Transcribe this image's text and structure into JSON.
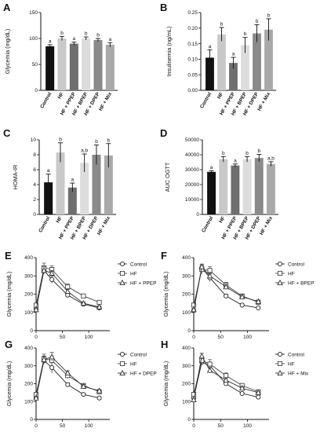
{
  "colors": {
    "control": "#111111",
    "hf": "#c9c9c9",
    "hf_ppep": "#6e6e6e",
    "hf_bpep": "#dcdcdc",
    "hf_dpep": "#8a8a8a",
    "hf_mix": "#a9a9a9",
    "axis": "#111111"
  },
  "chart_data": [
    {
      "panel": "A",
      "type": "bar",
      "ylabel": "Glycemia (mg/dL)",
      "ylim": [
        0,
        150
      ],
      "yticks": [
        "0",
        "50",
        "100",
        "150"
      ],
      "categories": [
        "Control",
        "HF",
        "HF + PPEP",
        "HF + BPEP",
        "HF + DPEP",
        "HF + Mix"
      ],
      "values": [
        85,
        100,
        90,
        100,
        97,
        88
      ],
      "errors": [
        3,
        4,
        3,
        3,
        3,
        4
      ],
      "labels": [
        "a",
        "b",
        "a",
        "b",
        "b",
        "a"
      ]
    },
    {
      "panel": "B",
      "type": "bar",
      "ylabel": "Insulinemia (ng/mL)",
      "ylim": [
        0,
        0.25
      ],
      "yticks": [
        "0.00",
        "0.05",
        "0.10",
        "0.15",
        "0.20",
        "0.25"
      ],
      "categories": [
        "Control",
        "HF",
        "HF + PPEP",
        "HF + BPEP",
        "HF + DPEP",
        "HF + Mix"
      ],
      "values": [
        0.105,
        0.18,
        0.088,
        0.145,
        0.183,
        0.195
      ],
      "errors": [
        0.025,
        0.022,
        0.018,
        0.025,
        0.028,
        0.035
      ],
      "labels": [
        "a",
        "b",
        "a",
        "b",
        "b",
        "b"
      ]
    },
    {
      "panel": "C",
      "type": "bar",
      "ylabel": "HOMA-IR",
      "ylim": [
        0,
        10
      ],
      "yticks": [
        "0",
        "2",
        "4",
        "6",
        "8",
        "10"
      ],
      "categories": [
        "Control",
        "HF",
        "HF + PPEP",
        "HF + BPEP",
        "HF + DPEP",
        "HF + Mix"
      ],
      "values": [
        4.3,
        8.3,
        3.6,
        6.9,
        8.0,
        7.9
      ],
      "errors": [
        1.1,
        1.3,
        0.6,
        1.2,
        1.3,
        1.6
      ],
      "labels": [
        "a",
        "b",
        "a",
        "a,b",
        "b",
        "b"
      ]
    },
    {
      "panel": "D",
      "type": "bar",
      "ylabel": "AUC OGTT",
      "ylim": [
        0,
        50000
      ],
      "yticks": [
        "0",
        "10000",
        "20000",
        "30000",
        "40000",
        "50000"
      ],
      "categories": [
        "Control",
        "HF",
        "HF + PPEP",
        "HF + BPEP",
        "HF + DPEP",
        "HF + Mix"
      ],
      "values": [
        28500,
        37000,
        32800,
        37000,
        37800,
        33800
      ],
      "errors": [
        800,
        1800,
        1000,
        1800,
        2400,
        1500
      ],
      "labels": [
        "a",
        "b",
        "a",
        "b",
        "b",
        "a,b"
      ]
    },
    {
      "panel": "E",
      "type": "line",
      "ylabel": "Glycemia (mg/dL)",
      "ylim": [
        0,
        400
      ],
      "xlim": [
        0,
        140
      ],
      "yticks": [
        "0",
        "100",
        "200",
        "300",
        "400"
      ],
      "xticks": [
        "0",
        "50",
        "100"
      ],
      "x": [
        0,
        15,
        30,
        60,
        90,
        120
      ],
      "series": [
        {
          "name": "Control",
          "marker": "circle",
          "values": [
            120,
            330,
            280,
            195,
            145,
            125
          ],
          "errors": [
            8,
            15,
            20,
            10,
            8,
            6
          ]
        },
        {
          "name": "HF",
          "marker": "square",
          "values": [
            140,
            345,
            335,
            240,
            190,
            155
          ],
          "errors": [
            10,
            25,
            20,
            15,
            10,
            8
          ]
        },
        {
          "name": "HF + PPEP",
          "marker": "triangle",
          "values": [
            115,
            330,
            315,
            215,
            150,
            130
          ],
          "errors": [
            8,
            20,
            15,
            10,
            8,
            6
          ]
        }
      ]
    },
    {
      "panel": "F",
      "type": "line",
      "ylabel": "Glycemia (mg/dL)",
      "ylim": [
        0,
        400
      ],
      "xlim": [
        0,
        140
      ],
      "yticks": [
        "0",
        "100",
        "200",
        "300",
        "400"
      ],
      "xticks": [
        "0",
        "50",
        "100"
      ],
      "x": [
        0,
        15,
        30,
        60,
        90,
        120
      ],
      "series": [
        {
          "name": "Control",
          "marker": "circle",
          "values": [
            110,
            345,
            290,
            190,
            140,
            125
          ],
          "errors": [
            8,
            15,
            20,
            10,
            8,
            6
          ]
        },
        {
          "name": "HF",
          "marker": "square",
          "values": [
            140,
            335,
            330,
            250,
            190,
            155
          ],
          "errors": [
            10,
            25,
            20,
            15,
            10,
            8
          ]
        },
        {
          "name": "HF + BPEP",
          "marker": "triangle",
          "values": [
            115,
            350,
            300,
            240,
            185,
            160
          ],
          "errors": [
            8,
            15,
            15,
            12,
            10,
            8
          ]
        }
      ]
    },
    {
      "panel": "G",
      "type": "line",
      "ylabel": "Glycemia (mg/dL)",
      "ylim": [
        0,
        400
      ],
      "xlim": [
        0,
        140
      ],
      "yticks": [
        "0",
        "100",
        "200",
        "300",
        "400"
      ],
      "xticks": [
        "0",
        "50",
        "100"
      ],
      "x": [
        0,
        15,
        30,
        60,
        90,
        120
      ],
      "series": [
        {
          "name": "Control",
          "marker": "circle",
          "values": [
            120,
            330,
            290,
            195,
            140,
            120
          ],
          "errors": [
            8,
            20,
            30,
            10,
            8,
            6
          ]
        },
        {
          "name": "HF",
          "marker": "square",
          "values": [
            140,
            340,
            330,
            245,
            190,
            155
          ],
          "errors": [
            10,
            25,
            25,
            15,
            10,
            8
          ]
        },
        {
          "name": "HF + DPEP",
          "marker": "triangle",
          "values": [
            120,
            335,
            350,
            260,
            185,
            160
          ],
          "errors": [
            8,
            20,
            25,
            12,
            10,
            8
          ]
        }
      ]
    },
    {
      "panel": "H",
      "type": "line",
      "ylabel": "Glycemia (mg/dL)",
      "ylim": [
        0,
        400
      ],
      "xlim": [
        0,
        140
      ],
      "yticks": [
        "0",
        "100",
        "200",
        "300",
        "400"
      ],
      "xticks": [
        "0",
        "50",
        "100"
      ],
      "x": [
        0,
        15,
        30,
        60,
        90,
        120
      ],
      "series": [
        {
          "name": "Control",
          "marker": "circle",
          "values": [
            120,
            320,
            300,
            200,
            145,
            125
          ],
          "errors": [
            8,
            15,
            20,
            10,
            8,
            6
          ]
        },
        {
          "name": "HF",
          "marker": "square",
          "values": [
            140,
            330,
            310,
            245,
            190,
            155
          ],
          "errors": [
            10,
            20,
            25,
            15,
            10,
            8
          ]
        },
        {
          "name": "HF + Mix",
          "marker": "triangle",
          "values": [
            110,
            355,
            275,
            220,
            175,
            150
          ],
          "errors": [
            8,
            15,
            15,
            12,
            10,
            8
          ]
        }
      ]
    }
  ]
}
